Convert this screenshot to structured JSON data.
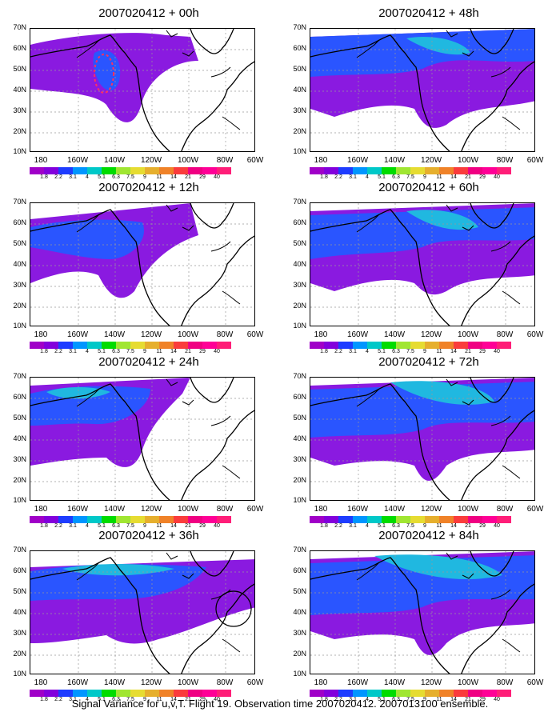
{
  "panels": [
    {
      "title": "2007020412 + 00h"
    },
    {
      "title": "2007020412 + 48h"
    },
    {
      "title": "2007020412 + 12h"
    },
    {
      "title": "2007020412 + 60h"
    },
    {
      "title": "2007020412 + 24h"
    },
    {
      "title": "2007020412 + 72h"
    },
    {
      "title": "2007020412 + 36h"
    },
    {
      "title": "2007020412 + 84h"
    }
  ],
  "lat_labels": [
    "70N",
    "60N",
    "50N",
    "40N",
    "30N",
    "20N",
    "10N"
  ],
  "lon_labels": [
    "180",
    "160W",
    "140W",
    "120W",
    "100W",
    "80W",
    "60W"
  ],
  "colorbar": {
    "labels": [
      "1.8",
      "2.2",
      "3.1",
      "4",
      "5.1",
      "6.3",
      "7.5",
      "9",
      "11",
      "14",
      "21",
      "29",
      "40"
    ],
    "colors": [
      "#a000c8",
      "#8200dc",
      "#1e3cff",
      "#0096ff",
      "#00c8c8",
      "#00dc00",
      "#a0e632",
      "#e6dc32",
      "#e6af2d",
      "#f08228",
      "#fa3c3c",
      "#f00082",
      "#ff0096",
      "#ff1e78"
    ]
  },
  "caption": "Signal Variance for u,v,T. Flight 19. Observation time 2007020412. 2007013100 ensemble."
}
